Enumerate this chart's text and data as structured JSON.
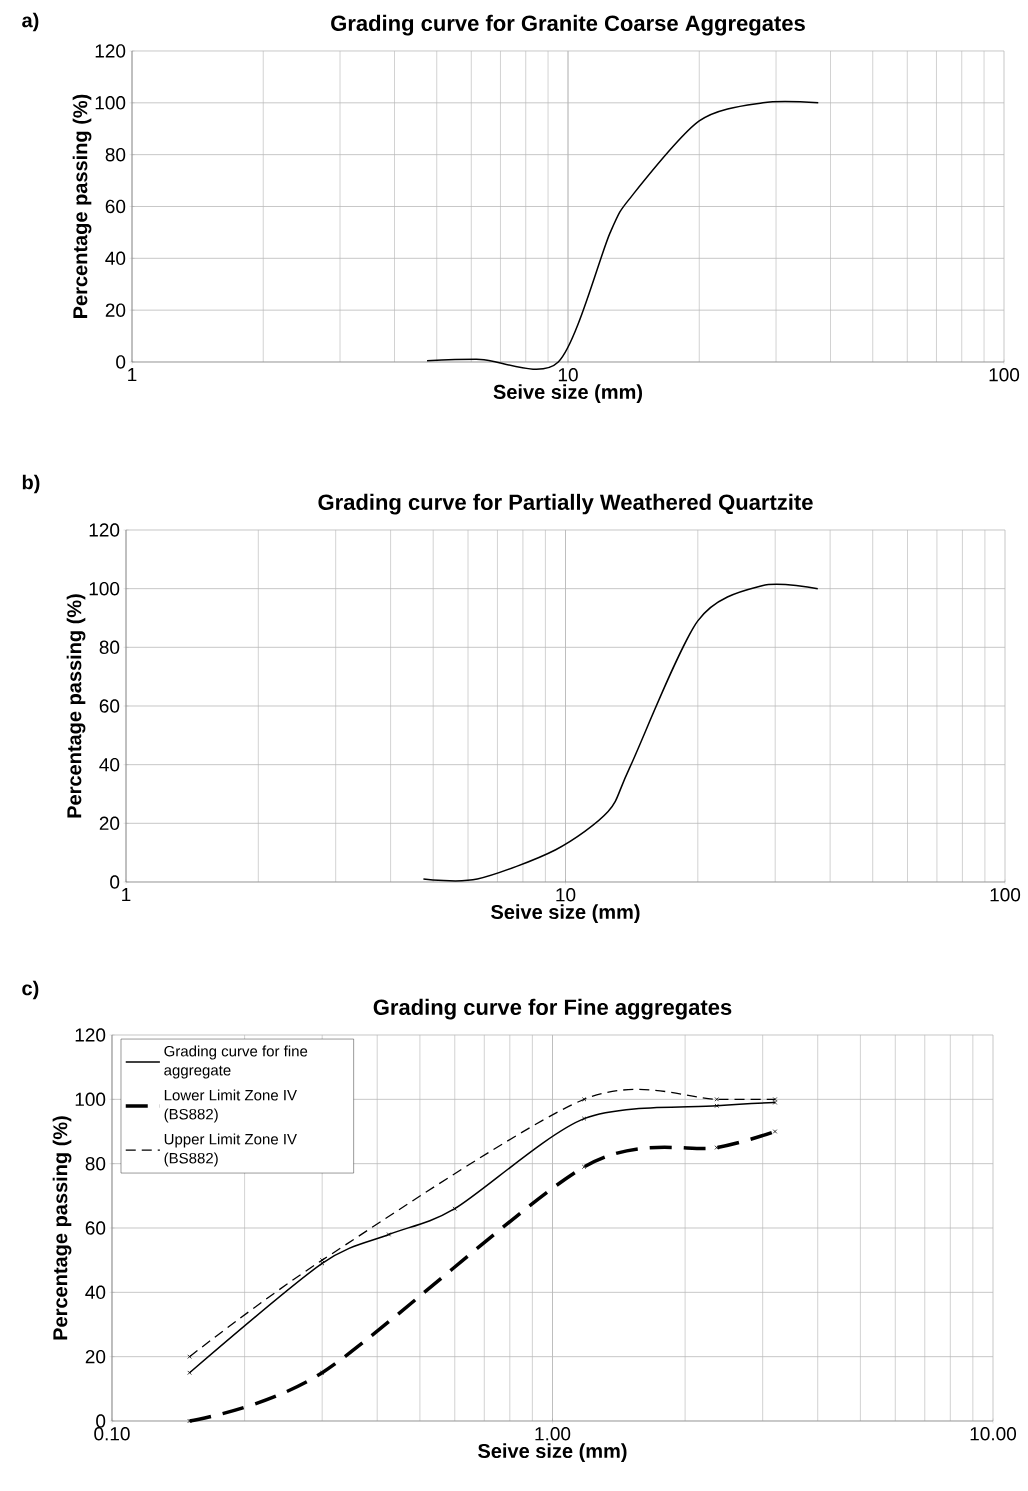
{
  "chart_data": [
    {
      "type": "line",
      "title": "Grading curve for Granite Coarse Aggregates",
      "xlabel": "Seive size (mm)",
      "ylabel": "Percentage passing (%)",
      "annotations": [
        "a)"
      ],
      "log": "x",
      "grid": true,
      "xlim": [
        1,
        100
      ],
      "xticks": [
        1,
        10,
        100
      ],
      "ylim": [
        0,
        120
      ],
      "yticks": [
        0,
        20,
        40,
        60,
        80,
        100,
        120
      ],
      "series": [
        {
          "color": "#000000",
          "line_style": "solid",
          "x": [
            4.75,
            6.3,
            9.5,
            12.5,
            14,
            20,
            28,
            37.5
          ],
          "values": [
            0.5,
            1,
            0,
            50,
            64,
            93,
            100,
            100
          ]
        }
      ]
    },
    {
      "type": "line",
      "title": "Grading curve for Partially Weathered Quartzite",
      "xlabel": "Seive size (mm)",
      "ylabel": "Percentage passing (%)",
      "annotations": [
        "b)"
      ],
      "log": "x",
      "grid": true,
      "xlim": [
        1,
        100
      ],
      "xticks": [
        1,
        10,
        100
      ],
      "ylim": [
        0,
        120
      ],
      "yticks": [
        0,
        20,
        40,
        60,
        80,
        100,
        120
      ],
      "series": [
        {
          "color": "#000000",
          "line_style": "solid",
          "x": [
            4.75,
            6.3,
            9.5,
            12.5,
            14,
            20,
            28,
            37.5
          ],
          "values": [
            1,
            1,
            11,
            24,
            39,
            89,
            101,
            100
          ]
        }
      ]
    },
    {
      "type": "line",
      "title": "Grading curve for Fine aggregates",
      "xlabel": "Seive size (mm)",
      "ylabel": "Percentage passing (%)",
      "annotations": [
        "c)"
      ],
      "log": "x",
      "grid": true,
      "legend": "top left",
      "marker": "cross",
      "xlim": [
        0.1,
        10
      ],
      "xticks": [
        {
          "value": 0.1,
          "label": "0.10"
        },
        {
          "value": 1,
          "label": "1.00"
        },
        {
          "value": 10,
          "label": "10.00"
        }
      ],
      "ylim": [
        0,
        120
      ],
      "yticks": [
        0,
        20,
        40,
        60,
        80,
        100,
        120
      ],
      "series": [
        {
          "name": "Grading curve for fine aggregate",
          "color": "#000000",
          "line_style": "solid",
          "x": [
            0.15,
            0.3,
            0.425,
            0.6,
            1.18,
            2.36,
            3.2
          ],
          "values": [
            15,
            49,
            58,
            66,
            94,
            98,
            99
          ]
        },
        {
          "name": "Lower Limit Zone IV (BS882)",
          "color": "#000000",
          "line_style": "dashed",
          "x": [
            0.15,
            0.3,
            1.18,
            2.36,
            3.2
          ],
          "values": [
            0,
            15,
            79,
            85,
            90
          ]
        },
        {
          "name": "Upper Limit Zone IV (BS882)",
          "color": "#000000",
          "line_style": "dashed",
          "x": [
            0.15,
            0.3,
            1.18,
            2.36,
            3.2
          ],
          "values": [
            20,
            50,
            100,
            100,
            100
          ]
        }
      ]
    }
  ]
}
